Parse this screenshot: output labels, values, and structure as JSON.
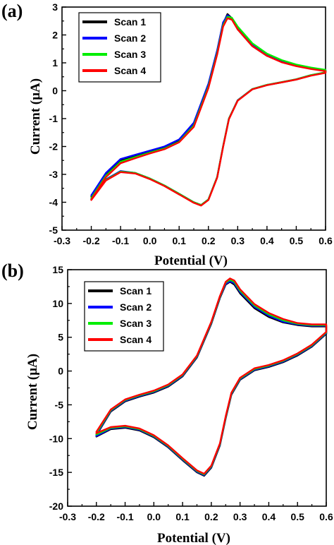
{
  "chart_data": [
    {
      "type": "line",
      "panel_label": "(a)",
      "xlabel": "Potential (V)",
      "ylabel": "Current (µA)",
      "xlim": [
        -0.3,
        0.6
      ],
      "ylim": [
        -5,
        3
      ],
      "xticks": [
        "-0.3",
        "-0.2",
        "-0.1",
        "0.0",
        "0.1",
        "0.2",
        "0.3",
        "0.4",
        "0.5",
        "0.6"
      ],
      "yticks": [
        "-5",
        "-4",
        "-3",
        "-2",
        "-1",
        "0",
        "1",
        "2",
        "3"
      ],
      "legend_position": "top-left",
      "series": [
        {
          "name": "Scan 1",
          "color": "#000000",
          "x": [
            -0.2,
            -0.15,
            -0.1,
            -0.05,
            0.0,
            0.05,
            0.1,
            0.15,
            0.2,
            0.23,
            0.25,
            0.265,
            0.28,
            0.3,
            0.35,
            0.4,
            0.45,
            0.5,
            0.55,
            0.6,
            0.6,
            0.55,
            0.5,
            0.45,
            0.4,
            0.35,
            0.3,
            0.27,
            0.25,
            0.23,
            0.2,
            0.175,
            0.15,
            0.1,
            0.05,
            0.0,
            -0.05,
            -0.1,
            -0.15,
            -0.2
          ],
          "y": [
            -3.8,
            -3.0,
            -2.5,
            -2.35,
            -2.2,
            -2.05,
            -1.8,
            -1.2,
            0.2,
            1.4,
            2.4,
            2.75,
            2.6,
            2.2,
            1.6,
            1.25,
            1.05,
            0.9,
            0.8,
            0.72,
            0.65,
            0.55,
            0.4,
            0.3,
            0.2,
            0.05,
            -0.35,
            -1.0,
            -2.0,
            -3.1,
            -3.9,
            -4.1,
            -4.0,
            -3.7,
            -3.4,
            -3.15,
            -2.95,
            -2.9,
            -3.2,
            -3.9
          ]
        },
        {
          "name": "Scan 2",
          "color": "#0000ff",
          "x": [
            -0.2,
            -0.15,
            -0.1,
            -0.05,
            0.0,
            0.05,
            0.1,
            0.15,
            0.2,
            0.23,
            0.25,
            0.265,
            0.28,
            0.3,
            0.35,
            0.4,
            0.45,
            0.5,
            0.55,
            0.6,
            0.6,
            0.55,
            0.5,
            0.45,
            0.4,
            0.35,
            0.3,
            0.27,
            0.25,
            0.23,
            0.2,
            0.175,
            0.15,
            0.1,
            0.05,
            0.0,
            -0.05,
            -0.1,
            -0.15,
            -0.2
          ],
          "y": [
            -3.75,
            -2.95,
            -2.45,
            -2.3,
            -2.15,
            -2.0,
            -1.75,
            -1.15,
            0.25,
            1.45,
            2.45,
            2.7,
            2.6,
            2.25,
            1.65,
            1.3,
            1.08,
            0.92,
            0.82,
            0.74,
            0.66,
            0.56,
            0.41,
            0.31,
            0.21,
            0.06,
            -0.34,
            -1.0,
            -2.0,
            -3.1,
            -3.9,
            -4.1,
            -4.0,
            -3.7,
            -3.4,
            -3.15,
            -2.95,
            -2.88,
            -3.18,
            -3.88
          ]
        },
        {
          "name": "Scan 3",
          "color": "#00ee00",
          "x": [
            -0.2,
            -0.15,
            -0.1,
            -0.05,
            0.0,
            0.05,
            0.1,
            0.15,
            0.2,
            0.23,
            0.25,
            0.265,
            0.28,
            0.3,
            0.35,
            0.4,
            0.45,
            0.5,
            0.55,
            0.6,
            0.6,
            0.55,
            0.5,
            0.45,
            0.4,
            0.35,
            0.3,
            0.27,
            0.25,
            0.23,
            0.2,
            0.175,
            0.15,
            0.1,
            0.05,
            0.0,
            -0.05,
            -0.1,
            -0.15,
            -0.2
          ],
          "y": [
            -3.85,
            -3.05,
            -2.55,
            -2.38,
            -2.22,
            -2.07,
            -1.83,
            -1.25,
            0.15,
            1.35,
            2.35,
            2.65,
            2.62,
            2.3,
            1.7,
            1.33,
            1.1,
            0.94,
            0.83,
            0.75,
            0.66,
            0.56,
            0.41,
            0.31,
            0.21,
            0.06,
            -0.35,
            -1.0,
            -2.0,
            -3.1,
            -3.9,
            -4.1,
            -4.0,
            -3.7,
            -3.4,
            -3.15,
            -2.95,
            -2.9,
            -3.2,
            -3.9
          ]
        },
        {
          "name": "Scan 4",
          "color": "#ff0000",
          "x": [
            -0.2,
            -0.15,
            -0.1,
            -0.05,
            0.0,
            0.05,
            0.1,
            0.15,
            0.2,
            0.23,
            0.25,
            0.265,
            0.28,
            0.3,
            0.35,
            0.4,
            0.45,
            0.5,
            0.55,
            0.6,
            0.6,
            0.55,
            0.5,
            0.45,
            0.4,
            0.35,
            0.3,
            0.27,
            0.25,
            0.23,
            0.2,
            0.175,
            0.15,
            0.1,
            0.05,
            0.0,
            -0.05,
            -0.1,
            -0.15,
            -0.2
          ],
          "y": [
            -3.9,
            -3.1,
            -2.6,
            -2.42,
            -2.25,
            -2.1,
            -1.85,
            -1.3,
            0.1,
            1.3,
            2.3,
            2.6,
            2.55,
            2.2,
            1.6,
            1.25,
            1.02,
            0.88,
            0.78,
            0.7,
            0.64,
            0.54,
            0.4,
            0.3,
            0.2,
            0.05,
            -0.36,
            -1.02,
            -2.02,
            -3.12,
            -3.92,
            -4.12,
            -4.02,
            -3.72,
            -3.42,
            -3.17,
            -2.97,
            -2.92,
            -3.22,
            -3.92
          ]
        }
      ]
    },
    {
      "type": "line",
      "panel_label": "(b)",
      "xlabel": "Potential (V)",
      "ylabel": "Current (µA)",
      "xlim": [
        -0.3,
        0.6
      ],
      "ylim": [
        -20,
        15
      ],
      "xticks": [
        "-0.3",
        "-0.2",
        "-0.1",
        "0.0",
        "0.1",
        "0.2",
        "0.3",
        "0.4",
        "0.5",
        "0.6"
      ],
      "yticks": [
        "-20",
        "-15",
        "-10",
        "-5",
        "0",
        "5",
        "10",
        "15"
      ],
      "legend_position": "top-left",
      "series": [
        {
          "name": "Scan 1",
          "color": "#000000",
          "x": [
            -0.2,
            -0.15,
            -0.1,
            -0.05,
            0.0,
            0.05,
            0.1,
            0.15,
            0.2,
            0.23,
            0.25,
            0.265,
            0.28,
            0.3,
            0.35,
            0.4,
            0.45,
            0.5,
            0.55,
            0.6,
            0.6,
            0.55,
            0.5,
            0.45,
            0.4,
            0.35,
            0.3,
            0.27,
            0.25,
            0.23,
            0.2,
            0.175,
            0.15,
            0.1,
            0.05,
            0.0,
            -0.05,
            -0.1,
            -0.15,
            -0.2
          ],
          "y": [
            -9.5,
            -6.0,
            -4.5,
            -3.8,
            -3.2,
            -2.3,
            -0.8,
            2.0,
            7.0,
            10.8,
            12.8,
            13.2,
            12.8,
            11.5,
            9.3,
            8.0,
            7.2,
            6.8,
            6.6,
            6.6,
            5.5,
            3.6,
            2.3,
            1.3,
            0.6,
            0.1,
            -1.3,
            -3.5,
            -7.0,
            -11.0,
            -14.3,
            -15.5,
            -15.0,
            -13.2,
            -11.3,
            -9.8,
            -8.8,
            -8.4,
            -8.6,
            -9.7
          ]
        },
        {
          "name": "Scan 2",
          "color": "#0000ff",
          "x": [
            -0.2,
            -0.15,
            -0.1,
            -0.05,
            0.0,
            0.05,
            0.1,
            0.15,
            0.2,
            0.23,
            0.25,
            0.265,
            0.28,
            0.3,
            0.35,
            0.4,
            0.45,
            0.5,
            0.55,
            0.6,
            0.6,
            0.55,
            0.5,
            0.45,
            0.4,
            0.35,
            0.3,
            0.27,
            0.25,
            0.23,
            0.2,
            0.175,
            0.15,
            0.1,
            0.05,
            0.0,
            -0.05,
            -0.1,
            -0.15,
            -0.2
          ],
          "y": [
            -9.4,
            -5.9,
            -4.4,
            -3.7,
            -3.1,
            -2.2,
            -0.7,
            2.1,
            7.1,
            10.9,
            12.9,
            13.3,
            13.0,
            11.7,
            9.5,
            8.2,
            7.3,
            6.9,
            6.7,
            6.7,
            5.6,
            3.7,
            2.4,
            1.4,
            0.7,
            0.2,
            -1.2,
            -3.4,
            -6.9,
            -10.9,
            -14.2,
            -15.4,
            -14.9,
            -13.1,
            -11.2,
            -9.7,
            -8.7,
            -8.3,
            -8.5,
            -9.6
          ]
        },
        {
          "name": "Scan 3",
          "color": "#00ee00",
          "x": [
            -0.2,
            -0.15,
            -0.1,
            -0.05,
            0.0,
            0.05,
            0.1,
            0.15,
            0.2,
            0.23,
            0.25,
            0.265,
            0.28,
            0.3,
            0.35,
            0.4,
            0.45,
            0.5,
            0.55,
            0.6,
            0.6,
            0.55,
            0.5,
            0.45,
            0.4,
            0.35,
            0.3,
            0.27,
            0.25,
            0.23,
            0.2,
            0.175,
            0.15,
            0.1,
            0.05,
            0.0,
            -0.05,
            -0.1,
            -0.15,
            -0.2
          ],
          "y": [
            -9.2,
            -5.8,
            -4.3,
            -3.6,
            -3.0,
            -2.1,
            -0.6,
            2.2,
            7.2,
            11.0,
            13.1,
            13.5,
            13.2,
            11.9,
            9.7,
            8.4,
            7.5,
            7.0,
            6.8,
            6.8,
            5.7,
            3.8,
            2.5,
            1.5,
            0.8,
            0.3,
            -1.1,
            -3.3,
            -6.8,
            -10.8,
            -14.1,
            -15.3,
            -14.8,
            -13.0,
            -11.1,
            -9.6,
            -8.6,
            -8.2,
            -8.4,
            -9.4
          ]
        },
        {
          "name": "Scan 4",
          "color": "#ff0000",
          "x": [
            -0.2,
            -0.15,
            -0.1,
            -0.05,
            0.0,
            0.05,
            0.1,
            0.15,
            0.2,
            0.23,
            0.25,
            0.265,
            0.28,
            0.3,
            0.35,
            0.4,
            0.45,
            0.5,
            0.55,
            0.6,
            0.6,
            0.55,
            0.5,
            0.45,
            0.4,
            0.35,
            0.3,
            0.27,
            0.25,
            0.23,
            0.2,
            0.175,
            0.15,
            0.1,
            0.05,
            0.0,
            -0.05,
            -0.1,
            -0.15,
            -0.2
          ],
          "y": [
            -9.0,
            -5.7,
            -4.2,
            -3.5,
            -2.9,
            -2.0,
            -0.5,
            2.3,
            7.3,
            11.1,
            13.2,
            13.7,
            13.4,
            12.1,
            9.9,
            8.6,
            7.7,
            7.1,
            6.9,
            6.9,
            5.8,
            3.9,
            2.6,
            1.6,
            0.9,
            0.4,
            -1.0,
            -3.2,
            -6.7,
            -10.7,
            -14.0,
            -15.2,
            -14.7,
            -12.9,
            -11.0,
            -9.5,
            -8.5,
            -8.1,
            -8.3,
            -9.2
          ]
        }
      ]
    }
  ]
}
